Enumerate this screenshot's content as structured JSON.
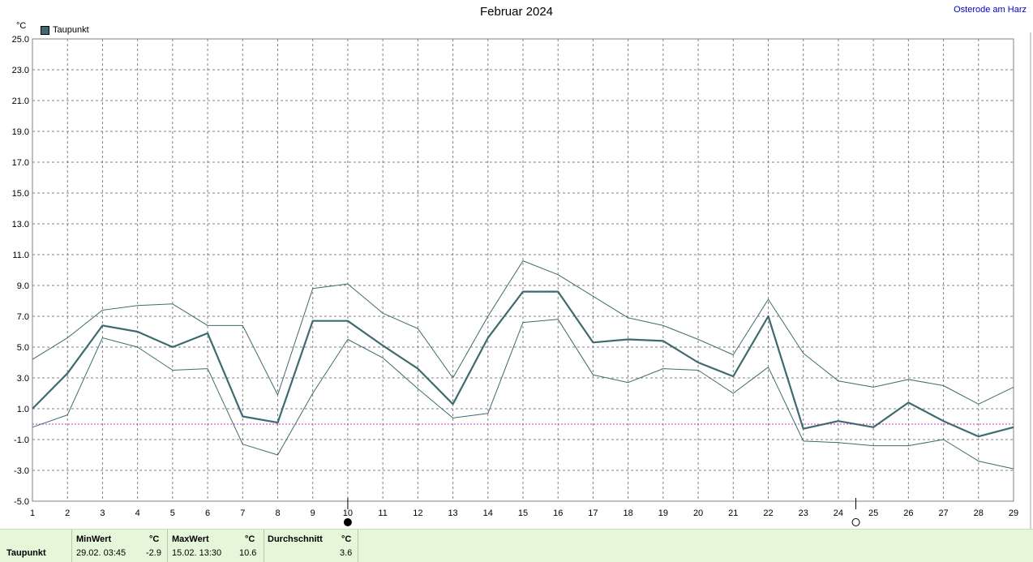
{
  "location": "Osterode am Harz",
  "chart_data": {
    "type": "line",
    "title": "Februar 2024",
    "ylabel": "°C",
    "xlabel": "",
    "ylim": [
      -5,
      25
    ],
    "yticks": [
      "25.0",
      "23.0",
      "21.0",
      "19.0",
      "17.0",
      "15.0",
      "13.0",
      "11.0",
      "9.0",
      "7.0",
      "5.0",
      "3.0",
      "1.0",
      "-1.0",
      "-3.0",
      "-5.0"
    ],
    "x": [
      1,
      2,
      3,
      4,
      5,
      6,
      7,
      8,
      9,
      10,
      11,
      12,
      13,
      14,
      15,
      16,
      17,
      18,
      19,
      20,
      21,
      22,
      23,
      24,
      25,
      26,
      27,
      28,
      29
    ],
    "grid": true,
    "legend": "top-left",
    "reference_line": 0,
    "series": [
      {
        "name": "Taupunkt",
        "role": "mean",
        "color": "#3d6b6e",
        "values": [
          1.0,
          3.3,
          6.4,
          6.0,
          5.0,
          5.9,
          0.5,
          0.1,
          6.7,
          6.7,
          5.1,
          3.6,
          1.3,
          5.6,
          8.6,
          8.6,
          5.3,
          5.5,
          5.4,
          4.0,
          3.1,
          7.0,
          -0.3,
          0.2,
          -0.2,
          1.4,
          0.2,
          -0.8,
          -0.2
        ]
      },
      {
        "role": "max",
        "color": "#3d6b6e",
        "values": [
          4.2,
          5.6,
          7.4,
          7.7,
          7.8,
          6.4,
          6.4,
          1.9,
          8.8,
          9.1,
          7.2,
          6.2,
          3.0,
          7.0,
          10.6,
          9.7,
          8.3,
          6.9,
          6.4,
          5.5,
          4.5,
          8.1,
          4.6,
          2.8,
          2.4,
          2.9,
          2.5,
          1.3,
          2.4
        ]
      },
      {
        "role": "min",
        "color": "#3d6b6e",
        "values": [
          -0.2,
          0.6,
          5.6,
          5.0,
          3.5,
          3.6,
          -1.3,
          -2.0,
          2.0,
          5.5,
          4.3,
          2.3,
          0.4,
          0.7,
          6.6,
          6.8,
          3.2,
          2.7,
          3.6,
          3.5,
          2.0,
          3.7,
          -1.1,
          -1.2,
          -1.4,
          -1.4,
          -1.0,
          -2.4,
          -2.9
        ]
      }
    ],
    "markers": [
      {
        "x": 10,
        "type": "full-moon"
      },
      {
        "x": 24.5,
        "type": "new-moon"
      }
    ]
  },
  "summary": {
    "row_label": "Taupunkt",
    "min_header": "MinWert",
    "min_unit": "°C",
    "min_time": "29.02.  03:45",
    "min_value": "-2.9",
    "max_header": "MaxWert",
    "max_unit": "°C",
    "max_time": "15.02.  13:30",
    "max_value": "10.6",
    "avg_header": "Durchschnitt",
    "avg_unit": "°C",
    "avg_value": "3.6"
  }
}
